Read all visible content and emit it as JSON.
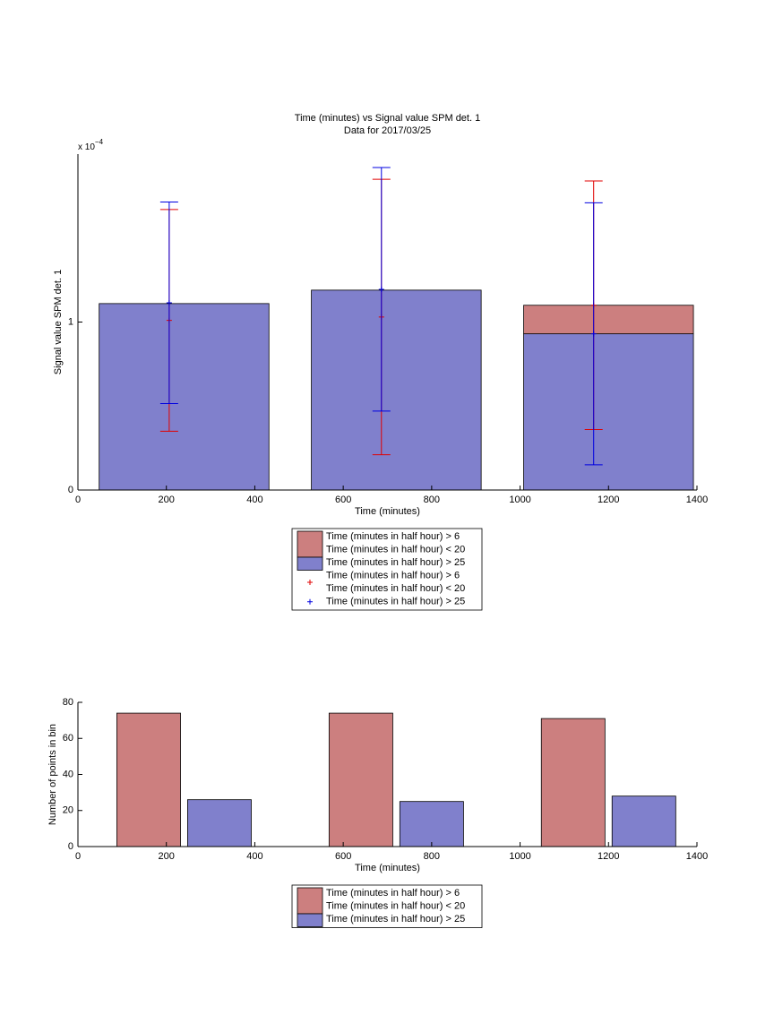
{
  "chart_data": [
    {
      "type": "bar",
      "stacked": true,
      "title": [
        "Time (minutes) vs Signal value SPM det. 1",
        "Data for 2017/03/25"
      ],
      "xlabel": "Time (minutes)",
      "ylabel": "Signal value SPM det. 1",
      "y_multiplier": {
        "base": "x 10",
        "exponent": "−4"
      },
      "x": [
        240,
        720,
        1200
      ],
      "xlim": [
        0,
        1400
      ],
      "xticks": [
        0,
        200,
        400,
        600,
        800,
        1000,
        1200,
        1400
      ],
      "ylim": [
        0,
        2
      ],
      "yticks": [
        0,
        1
      ],
      "series": [
        {
          "name": [
            "Time (minutes in half hour) > 6",
            "Time (minutes in half hour) < 20"
          ],
          "color": "#cc7f7f",
          "values": [
            0,
            0,
            0.17
          ]
        },
        {
          "name": [
            "Time (minutes in half hour) > 25"
          ],
          "color": "#8080cc",
          "values": [
            1.11,
            1.19,
            0.93
          ]
        }
      ],
      "errorbars": [
        {
          "name": [
            "Time (minutes in half hour) > 6",
            "Time (minutes in half hour) < 20"
          ],
          "color": "#e00000",
          "values": [
            1.01,
            1.03,
            1.1
          ],
          "errors": [
            0.66,
            0.82,
            0.74
          ]
        },
        {
          "name": [
            "Time (minutes in half hour) > 25"
          ],
          "color": "#0000e0",
          "values": [
            1.115,
            1.195,
            0.93
          ],
          "errors": [
            0.6,
            0.725,
            0.78
          ]
        }
      ]
    },
    {
      "type": "bar",
      "stacked": false,
      "xlabel": "Time (minutes)",
      "ylabel": "Number of points in bin",
      "x": [
        240,
        720,
        1200
      ],
      "xlim": [
        0,
        1400
      ],
      "xticks": [
        0,
        200,
        400,
        600,
        800,
        1000,
        1200,
        1400
      ],
      "ylim": [
        0,
        80
      ],
      "yticks": [
        0,
        20,
        40,
        60,
        80
      ],
      "series": [
        {
          "name": [
            "Time (minutes in half hour) > 6",
            "Time (minutes in half hour) < 20"
          ],
          "color": "#cc7f7f",
          "values": [
            74,
            74,
            71
          ]
        },
        {
          "name": [
            "Time (minutes in half hour) > 25"
          ],
          "color": "#8080cc",
          "values": [
            26,
            25,
            28
          ]
        }
      ]
    }
  ]
}
